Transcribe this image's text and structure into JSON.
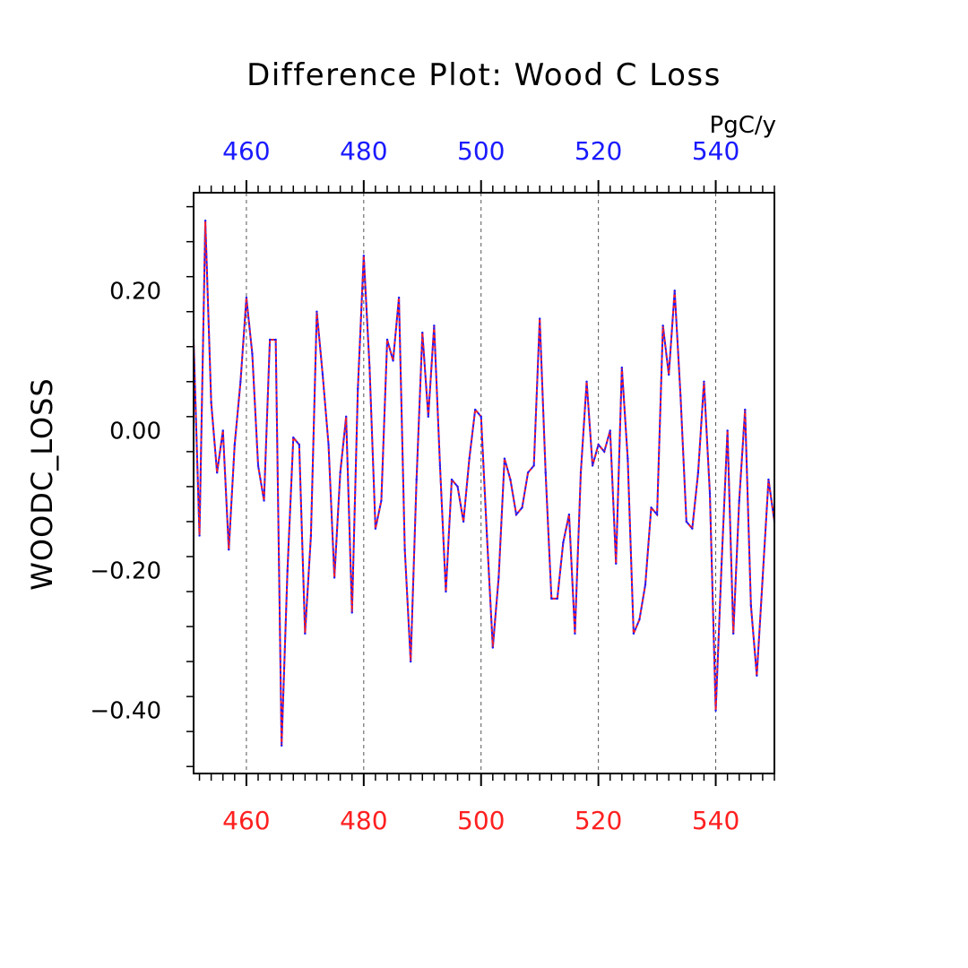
{
  "chart_data": {
    "type": "line",
    "title": "Difference Plot: Wood C Loss",
    "units": "PgC/y",
    "ylabel": "WOODC_LOSS",
    "xlabel": "",
    "xlim": [
      451,
      550
    ],
    "ylim": [
      -0.49,
      0.34
    ],
    "x_ticks": [
      460,
      480,
      500,
      520,
      540
    ],
    "y_ticks": [
      -0.4,
      -0.2,
      0.0,
      0.2
    ],
    "y_tick_labels": [
      "−0.40",
      "−0.20",
      "0.00",
      "0.20"
    ],
    "grid": "vertical dashed",
    "colors": {
      "top_axis": "#1a1aff",
      "bottom_axis": "#ff2020",
      "series_a": "#1a1aff",
      "series_b": "#ff2020"
    },
    "x_start": 451,
    "values": [
      0.13,
      -0.15,
      0.3,
      0.04,
      -0.06,
      0.0,
      -0.17,
      -0.02,
      0.07,
      0.19,
      0.11,
      -0.05,
      -0.1,
      0.13,
      0.13,
      -0.45,
      -0.2,
      -0.01,
      -0.02,
      -0.29,
      -0.15,
      0.17,
      0.08,
      -0.02,
      -0.21,
      -0.06,
      0.02,
      -0.26,
      0.06,
      0.25,
      0.09,
      -0.14,
      -0.1,
      0.13,
      0.1,
      0.19,
      -0.17,
      -0.33,
      -0.07,
      0.14,
      0.02,
      0.15,
      -0.05,
      -0.23,
      -0.07,
      -0.08,
      -0.13,
      -0.04,
      0.03,
      0.02,
      -0.15,
      -0.31,
      -0.21,
      -0.04,
      -0.07,
      -0.12,
      -0.11,
      -0.06,
      -0.05,
      0.16,
      -0.06,
      -0.24,
      -0.24,
      -0.16,
      -0.12,
      -0.29,
      -0.06,
      0.07,
      -0.05,
      -0.02,
      -0.03,
      0.0,
      -0.19,
      0.09,
      -0.04,
      -0.29,
      -0.27,
      -0.22,
      -0.11,
      -0.12,
      0.15,
      0.08,
      0.2,
      0.05,
      -0.13,
      -0.14,
      -0.06,
      0.07,
      -0.09,
      -0.4,
      -0.19,
      0.0,
      -0.29,
      -0.1,
      0.03,
      -0.25,
      -0.35,
      -0.21,
      -0.07,
      -0.13
    ]
  }
}
